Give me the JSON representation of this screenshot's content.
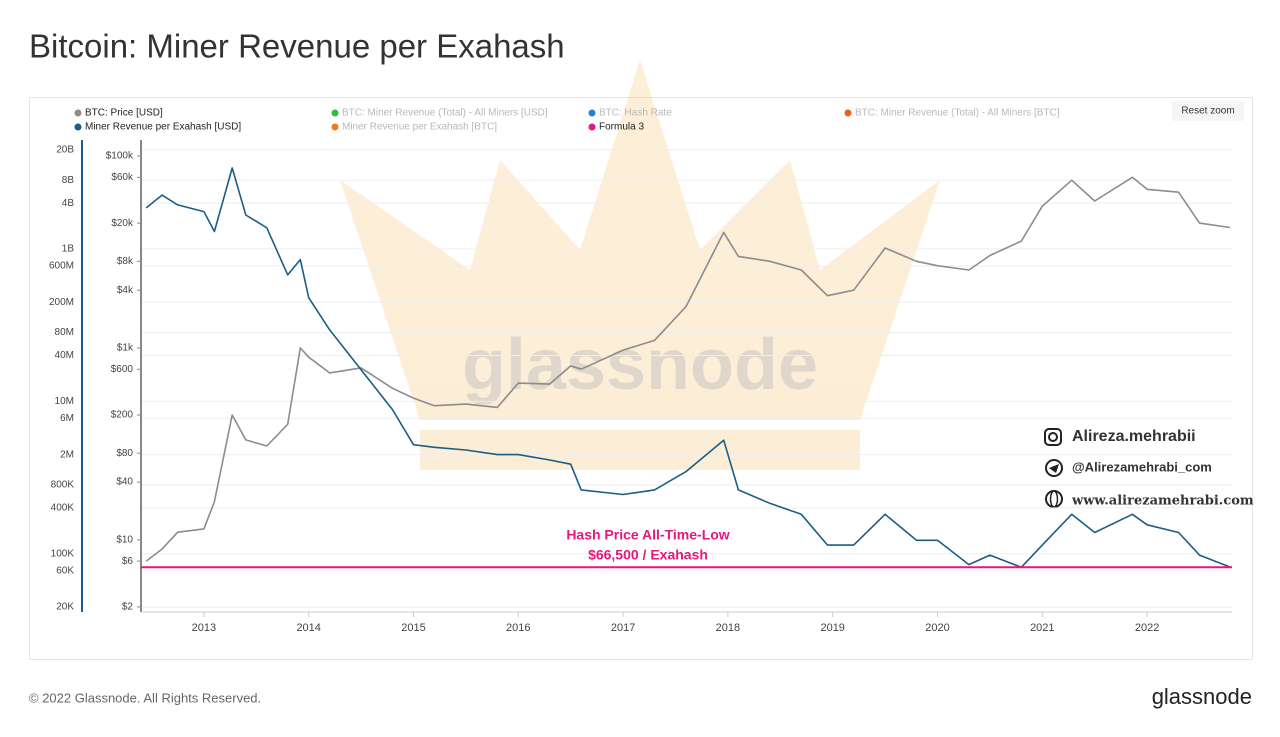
{
  "chart_data": {
    "type": "line",
    "title": "Bitcoin: Miner Revenue per Exahash",
    "log_scale": true,
    "grid": true,
    "x": [
      2012.45,
      2012.6,
      2012.75,
      2013.0,
      2013.1,
      2013.27,
      2013.4,
      2013.6,
      2013.8,
      2013.92,
      2014.0,
      2014.2,
      2014.5,
      2014.8,
      2015.0,
      2015.2,
      2015.5,
      2015.8,
      2016.0,
      2016.3,
      2016.5,
      2016.6,
      2017.0,
      2017.3,
      2017.6,
      2017.96,
      2018.1,
      2018.4,
      2018.7,
      2018.95,
      2019.2,
      2019.5,
      2019.8,
      2020.0,
      2020.3,
      2020.5,
      2020.8,
      2021.0,
      2021.28,
      2021.5,
      2021.86,
      2022.0,
      2022.3,
      2022.5,
      2022.79
    ],
    "xlim": [
      2012.4,
      2022.81
    ],
    "xticks": [
      2013,
      2014,
      2015,
      2016,
      2017,
      2018,
      2019,
      2020,
      2021,
      2022
    ],
    "series": [
      {
        "name": "BTC: Price [USD]",
        "color": "#8c8c8c",
        "axis": "y2",
        "values": [
          6,
          8,
          12,
          13,
          25,
          200,
          110,
          95,
          160,
          1000,
          800,
          550,
          620,
          380,
          300,
          250,
          260,
          240,
          430,
          420,
          650,
          600,
          950,
          1200,
          2700,
          16000,
          9000,
          8000,
          6500,
          3500,
          4000,
          11000,
          8000,
          7200,
          6500,
          9200,
          13000,
          30000,
          56000,
          34000,
          60000,
          45000,
          42000,
          20000,
          18000
        ]
      },
      {
        "name": "Miner Revenue per Exahash [USD]",
        "color": "#1b5e85",
        "axis": "y",
        "values": [
          3470000000,
          5100000000,
          3800000000,
          3100000000,
          1700000000,
          11600000000,
          2800000000,
          1900000000,
          458000000,
          727000000,
          230000000,
          87000000,
          26000000,
          7800000,
          2700000,
          2500000,
          2300000,
          2000000,
          2000000,
          1700000,
          1500000,
          690000,
          600000,
          690000,
          1200000,
          3100000,
          690000,
          460000,
          330000,
          130000,
          130000,
          330000,
          150000,
          150000,
          72000,
          96000,
          66500,
          130000,
          330000,
          190000,
          330000,
          240000,
          190000,
          96000,
          67000
        ]
      }
    ],
    "hidden_series": [
      {
        "name": "BTC: Miner Revenue (Total) - All Miners [USD]",
        "color": "#2ebd3c"
      },
      {
        "name": "BTC: Hash Rate",
        "color": "#2b7fd6"
      },
      {
        "name": "BTC: Miner Revenue (Total) - All Miners [BTC]",
        "color": "#e8611a"
      },
      {
        "name": "Miner Revenue per Exahash [BTC]",
        "color": "#f07a1a"
      }
    ],
    "reference_lines": [
      {
        "name": "Formula 3",
        "color": "#e8177d",
        "axis": "y",
        "value": 66500
      }
    ],
    "ylim": [
      17200,
      27000000000
    ],
    "yticks": [
      {
        "value": 20000000000,
        "label": "20B"
      },
      {
        "value": 8000000000,
        "label": "8B"
      },
      {
        "value": 4000000000,
        "label": "4B"
      },
      {
        "value": 1000000000,
        "label": "1B"
      },
      {
        "value": 600000000,
        "label": "600M"
      },
      {
        "value": 200000000,
        "label": "200M"
      },
      {
        "value": 80000000,
        "label": "80M"
      },
      {
        "value": 40000000,
        "label": "40M"
      },
      {
        "value": 10000000,
        "label": "10M"
      },
      {
        "value": 6000000,
        "label": "6M"
      },
      {
        "value": 2000000,
        "label": "2M"
      },
      {
        "value": 800000,
        "label": "800K"
      },
      {
        "value": 400000,
        "label": "400K"
      },
      {
        "value": 100000,
        "label": "100K"
      },
      {
        "value": 60000,
        "label": "60K"
      },
      {
        "value": 20000,
        "label": "20K"
      }
    ],
    "y2lim": [
      1.77,
      147000
    ],
    "y2ticks": [
      {
        "value": 100000,
        "label": "$100k"
      },
      {
        "value": 60000,
        "label": "$60k"
      },
      {
        "value": 20000,
        "label": "$20k"
      },
      {
        "value": 8000,
        "label": "$8k"
      },
      {
        "value": 4000,
        "label": "$4k"
      },
      {
        "value": 1000,
        "label": "$1k"
      },
      {
        "value": 600,
        "label": "$600"
      },
      {
        "value": 200,
        "label": "$200"
      },
      {
        "value": 80,
        "label": "$80"
      },
      {
        "value": 40,
        "label": "$40"
      },
      {
        "value": 10,
        "label": "$10"
      },
      {
        "value": 6,
        "label": "$6"
      },
      {
        "value": 2,
        "label": "$2"
      }
    ],
    "annotations": [
      "Hash Price All-Time-Low",
      "$66,500 / Exahash"
    ],
    "reset_button": "Reset zoom",
    "watermark": "glassnode"
  },
  "social": {
    "instagram": "Alireza.mehrabii",
    "telegram": "@Alirezamehrabi_com",
    "website": "www.alirezamehrabi.com"
  },
  "footer": {
    "copyright": "© 2022 Glassnode. All Rights Reserved.",
    "logo": "glassnode"
  }
}
